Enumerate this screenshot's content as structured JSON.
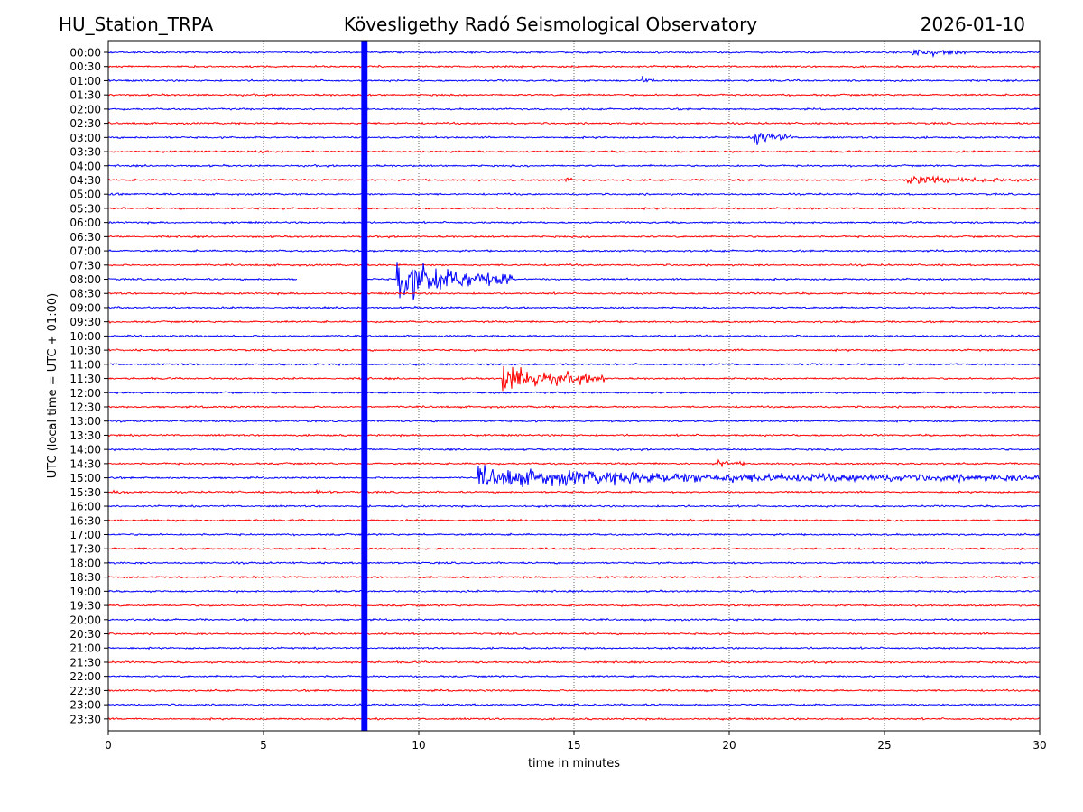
{
  "header": {
    "station": "HU_Station_TRPA",
    "title": "Kövesligethy Radó Seismological Observatory",
    "date": "2026-01-10"
  },
  "chart_data": {
    "type": "line",
    "subtype": "helicorder",
    "xlabel": "time in minutes",
    "ylabel": "UTC (local time = UTC + 01:00)",
    "xlim": [
      0,
      30
    ],
    "xticks": [
      0,
      5,
      10,
      15,
      20,
      25,
      30
    ],
    "grid": "vertical dotted lines at x ticks",
    "colors": [
      "#0000ff",
      "#ff0000"
    ],
    "rows": [
      "00:00",
      "00:30",
      "01:00",
      "01:30",
      "02:00",
      "02:30",
      "03:00",
      "03:30",
      "04:00",
      "04:30",
      "05:00",
      "05:30",
      "06:00",
      "06:30",
      "07:00",
      "07:30",
      "08:00",
      "08:30",
      "09:00",
      "09:30",
      "10:00",
      "10:30",
      "11:00",
      "11:30",
      "12:00",
      "12:30",
      "13:00",
      "13:30",
      "14:00",
      "14:30",
      "15:00",
      "15:30",
      "16:00",
      "16:30",
      "17:00",
      "17:30",
      "18:00",
      "18:30",
      "19:00",
      "19:30",
      "20:00",
      "20:30",
      "21:00",
      "21:30",
      "22:00",
      "22:30",
      "23:00",
      "23:30"
    ],
    "gap_band": {
      "start_min": 8.15,
      "end_min": 8.35,
      "color": "#0000ff"
    },
    "gaps": [
      {
        "row": "08:00",
        "start_min": 6.1,
        "end_min": 8.3
      }
    ],
    "events": [
      {
        "row": "00:00",
        "start_min": 25.9,
        "end_min": 27.6,
        "amplitude": 0.9
      },
      {
        "row": "01:00",
        "start_min": 17.2,
        "end_min": 17.6,
        "amplitude": 0.7
      },
      {
        "row": "03:00",
        "start_min": 20.8,
        "end_min": 22.0,
        "amplitude": 1.6
      },
      {
        "row": "03:30",
        "start_min": 4.6,
        "end_min": 5.6,
        "amplitude": 0.3
      },
      {
        "row": "04:30",
        "start_min": 14.7,
        "end_min": 15.0,
        "amplitude": 0.5
      },
      {
        "row": "04:30",
        "start_min": 25.7,
        "end_min": 30.0,
        "amplitude": 0.7
      },
      {
        "row": "05:00",
        "start_min": 0.0,
        "end_min": 0.7,
        "amplitude": 0.35
      },
      {
        "row": "08:00",
        "start_min": 9.3,
        "end_min": 13.0,
        "amplitude": 4.0
      },
      {
        "row": "11:30",
        "start_min": 12.7,
        "end_min": 16.0,
        "amplitude": 2.6
      },
      {
        "row": "14:30",
        "start_min": 19.6,
        "end_min": 20.5,
        "amplitude": 0.6
      },
      {
        "row": "15:00",
        "start_min": 11.9,
        "end_min": 30.0,
        "amplitude": 1.6
      },
      {
        "row": "15:30",
        "start_min": 0.0,
        "end_min": 1.0,
        "amplitude": 0.3
      },
      {
        "row": "15:30",
        "start_min": 6.7,
        "end_min": 7.3,
        "amplitude": 0.3
      }
    ]
  }
}
